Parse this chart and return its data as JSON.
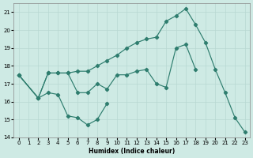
{
  "xlabel": "Humidex (Indice chaleur)",
  "series1_x": [
    0,
    2,
    3,
    4,
    5,
    6,
    7,
    8,
    9,
    10,
    11,
    12,
    13,
    14,
    15,
    16,
    17,
    18,
    19,
    20,
    21,
    22,
    23
  ],
  "series1_y": [
    17.5,
    16.2,
    17.6,
    17.6,
    17.6,
    17.7,
    17.7,
    18.0,
    18.3,
    18.6,
    19.0,
    19.3,
    19.5,
    19.6,
    20.5,
    20.8,
    21.2,
    20.3,
    19.3,
    17.8,
    16.5,
    15.1,
    14.3
  ],
  "series2_x": [
    0,
    2,
    3,
    4,
    5,
    6,
    7,
    8,
    9,
    10,
    11,
    12,
    13,
    14,
    15,
    16,
    17,
    18
  ],
  "series2_y": [
    17.5,
    16.2,
    17.6,
    17.6,
    17.6,
    16.5,
    16.5,
    17.0,
    16.7,
    17.5,
    17.5,
    17.7,
    17.8,
    17.0,
    16.8,
    19.0,
    19.2,
    17.8
  ],
  "series3_x": [
    0,
    2,
    3,
    4,
    5,
    6,
    7,
    8,
    9
  ],
  "series3_y": [
    17.5,
    16.2,
    16.5,
    16.4,
    15.2,
    15.1,
    14.7,
    15.0,
    15.9
  ],
  "ylim": [
    14,
    21.5
  ],
  "xlim": [
    -0.5,
    23.5
  ],
  "yticks": [
    14,
    15,
    16,
    17,
    18,
    19,
    20,
    21
  ],
  "xticks": [
    0,
    1,
    2,
    3,
    4,
    5,
    6,
    7,
    8,
    9,
    10,
    11,
    12,
    13,
    14,
    15,
    16,
    17,
    18,
    19,
    20,
    21,
    22,
    23
  ],
  "line_color": "#2e7d6e",
  "bg_color": "#ceeae4",
  "grid_color": "#b8d8d2"
}
